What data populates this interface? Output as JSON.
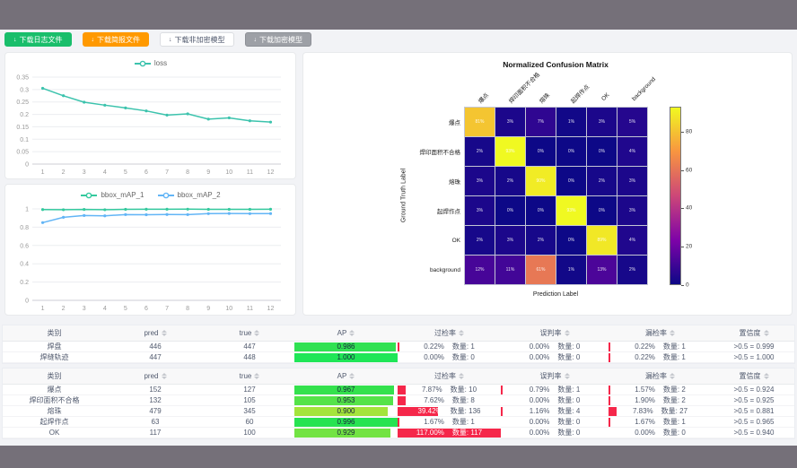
{
  "toolbar": {
    "buttons": [
      {
        "name": "download-log-button",
        "label": "下载日志文件",
        "style": "green"
      },
      {
        "name": "download-report-button",
        "label": "下载简报文件",
        "style": "orange"
      },
      {
        "name": "download-unencrypted-model-button",
        "label": "下载非加密模型",
        "style": "white"
      },
      {
        "name": "download-encrypted-model-button",
        "label": "下载加密模型",
        "style": "gray"
      }
    ],
    "download_icon": "↓"
  },
  "chart_data": [
    {
      "id": "loss",
      "type": "line",
      "x": [
        1,
        2,
        3,
        4,
        5,
        6,
        7,
        8,
        9,
        10,
        11,
        12
      ],
      "series": [
        {
          "name": "loss",
          "color": "#3cc3ad",
          "values": [
            0.305,
            0.275,
            0.249,
            0.237,
            0.226,
            0.214,
            0.197,
            0.202,
            0.181,
            0.186,
            0.174,
            0.169
          ]
        }
      ],
      "yticks": [
        "0",
        "0.05",
        "0.1",
        "0.15",
        "0.2",
        "0.25",
        "0.3",
        "0.35"
      ],
      "ylim": [
        0,
        0.35
      ],
      "legend_position": "top"
    },
    {
      "id": "bbox_map",
      "type": "line",
      "x": [
        1,
        2,
        3,
        4,
        5,
        6,
        7,
        8,
        9,
        10,
        11,
        12
      ],
      "series": [
        {
          "name": "bbox_mAP_1",
          "color": "#34c99e",
          "values": [
            0.993,
            0.991,
            0.994,
            0.991,
            0.995,
            0.996,
            0.996,
            0.997,
            0.995,
            0.995,
            0.995,
            0.996
          ]
        },
        {
          "name": "bbox_mAP_2",
          "color": "#62b5f6",
          "values": [
            0.85,
            0.908,
            0.928,
            0.924,
            0.938,
            0.936,
            0.939,
            0.938,
            0.948,
            0.95,
            0.948,
            0.949
          ]
        }
      ],
      "yticks": [
        "0",
        "0.2",
        "0.4",
        "0.6",
        "0.8",
        "1"
      ],
      "ylim": [
        0,
        1
      ],
      "legend_position": "top"
    }
  ],
  "confusion": {
    "title": "Normalized Confusion Matrix",
    "xlabel": "Prediction Label",
    "ylabel": "Ground Truth Label",
    "labels": [
      "爆点",
      "焊印面积不合格",
      "熔珠",
      "起焊作点",
      "OK",
      "background"
    ],
    "matrix": [
      [
        81,
        3,
        7,
        1,
        3,
        5
      ],
      [
        2,
        93,
        0,
        0,
        0,
        4
      ],
      [
        3,
        2,
        90,
        0,
        2,
        3
      ],
      [
        3,
        0,
        0,
        93,
        0,
        3
      ],
      [
        2,
        3,
        2,
        0,
        89,
        4
      ],
      [
        12,
        11,
        61,
        1,
        13,
        2
      ]
    ],
    "unit": "%",
    "vmax": 93,
    "colorbar_ticks": [
      0,
      20,
      40,
      60,
      80
    ]
  },
  "tables": [
    {
      "headers": [
        "类别",
        "pred",
        "true",
        "AP",
        "过检率",
        "误判率",
        "漏检率",
        "置信度"
      ],
      "sortable": [
        false,
        true,
        true,
        true,
        true,
        true,
        true,
        true
      ],
      "rows": [
        {
          "label": "焊盘",
          "pred": "446",
          "true": "447",
          "ap": "0.986",
          "ap_width": 98.6,
          "ap_color": "#30e152",
          "over": {
            "rate": "0.22%",
            "count": "数量: 1",
            "bar": 0.22
          },
          "mis": {
            "rate": "0.00%",
            "count": "数量: 0",
            "bar": 0
          },
          "miss": {
            "rate": "0.22%",
            "count": "数量: 1",
            "bar": 0.22
          },
          "conf": ">0.5 = 0.999"
        },
        {
          "label": "焊缝轨迹",
          "pred": "447",
          "true": "448",
          "ap": "1.000",
          "ap_width": 100,
          "ap_color": "#1fe657",
          "over": {
            "rate": "0.00%",
            "count": "数量: 0",
            "bar": 0
          },
          "mis": {
            "rate": "0.00%",
            "count": "数量: 0",
            "bar": 0
          },
          "miss": {
            "rate": "0.22%",
            "count": "数量: 1",
            "bar": 0.22
          },
          "conf": ">0.5 = 1.000"
        }
      ]
    },
    {
      "headers": [
        "类别",
        "pred",
        "true",
        "AP",
        "过检率",
        "误判率",
        "漏检率",
        "置信度"
      ],
      "sortable": [
        false,
        true,
        true,
        true,
        true,
        true,
        true,
        true
      ],
      "rows": [
        {
          "label": "爆点",
          "pred": "152",
          "true": "127",
          "ap": "0.967",
          "ap_width": 96.7,
          "ap_color": "#34e14d",
          "over": {
            "rate": "7.87%",
            "count": "数量: 10",
            "bar": 7.87
          },
          "mis": {
            "rate": "0.79%",
            "count": "数量: 1",
            "bar": 0.79
          },
          "miss": {
            "rate": "1.57%",
            "count": "数量: 2",
            "bar": 1.57
          },
          "conf": ">0.5 = 0.924"
        },
        {
          "label": "焊印面积不合格",
          "pred": "132",
          "true": "105",
          "ap": "0.953",
          "ap_width": 95.3,
          "ap_color": "#55e349",
          "over": {
            "rate": "7.62%",
            "count": "数量: 8",
            "bar": 7.62
          },
          "mis": {
            "rate": "0.00%",
            "count": "数量: 0",
            "bar": 0
          },
          "miss": {
            "rate": "1.90%",
            "count": "数量: 2",
            "bar": 1.9
          },
          "conf": ">0.5 = 0.925"
        },
        {
          "label": "熔珠",
          "pred": "479",
          "true": "345",
          "ap": "0.900",
          "ap_width": 90,
          "ap_color": "#a4e43b",
          "over": {
            "rate": "39.42%",
            "count": "数量: 136",
            "bar": 39.42
          },
          "mis": {
            "rate": "1.16%",
            "count": "数量: 4",
            "bar": 1.16
          },
          "miss": {
            "rate": "7.83%",
            "count": "数量: 27",
            "bar": 7.83
          },
          "conf": ">0.5 = 0.881"
        },
        {
          "label": "起焊作点",
          "pred": "63",
          "true": "60",
          "ap": "0.996",
          "ap_width": 99.6,
          "ap_color": "#27e351",
          "over": {
            "rate": "1.67%",
            "count": "数量: 1",
            "bar": 1.67
          },
          "mis": {
            "rate": "0.00%",
            "count": "数量: 0",
            "bar": 0
          },
          "miss": {
            "rate": "1.67%",
            "count": "数量: 1",
            "bar": 1.67
          },
          "conf": ">0.5 = 0.965"
        },
        {
          "label": "OK",
          "pred": "117",
          "true": "100",
          "ap": "0.929",
          "ap_width": 92.9,
          "ap_color": "#72e343",
          "over": {
            "rate": "117.00%",
            "count": "数量: 117",
            "bar": 117
          },
          "mis": {
            "rate": "0.00%",
            "count": "数量: 0",
            "bar": 0
          },
          "miss": {
            "rate": "0.00%",
            "count": "数量: 0",
            "bar": 0
          },
          "conf": ">0.5 = 0.940"
        }
      ]
    }
  ],
  "colors": {
    "frame": "#757079",
    "page_bg": "#f2f3f6",
    "rate_bar_red": "#f5274a",
    "plasma_stops": [
      "#0d0887",
      "#7e03a8",
      "#cc4778",
      "#f89540",
      "#f0f921"
    ]
  }
}
